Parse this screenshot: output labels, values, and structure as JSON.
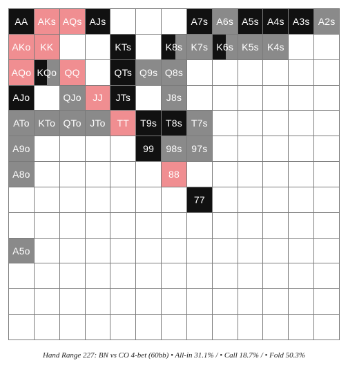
{
  "colors": {
    "allin": "#111111",
    "call": "#8a8a8a",
    "fold": "#f08e91",
    "empty": "#ffffff",
    "grid_line": "#7a7a7a",
    "label": "#ffffff"
  },
  "ranks": [
    "A",
    "K",
    "Q",
    "J",
    "T",
    "9",
    "8",
    "7",
    "6",
    "5",
    "4",
    "3",
    "2"
  ],
  "caption": "Hand Range 227: BN vs CO 4-bet (60bb) • All-in 31.1% / • Call 18.7% / • Fold 50.3%",
  "chart_data": {
    "type": "heatmap",
    "title": "",
    "cells": [
      {
        "label": "AA",
        "r": 0,
        "c": 0,
        "segments": [
          {
            "action": "allin",
            "frac": 1
          }
        ]
      },
      {
        "label": "AKs",
        "r": 0,
        "c": 1,
        "segments": [
          {
            "action": "fold",
            "frac": 1
          }
        ]
      },
      {
        "label": "AQs",
        "r": 0,
        "c": 2,
        "segments": [
          {
            "action": "fold",
            "frac": 1
          }
        ]
      },
      {
        "label": "AJs",
        "r": 0,
        "c": 3,
        "segments": [
          {
            "action": "allin",
            "frac": 1
          }
        ]
      },
      {
        "label": "A7s",
        "r": 0,
        "c": 7,
        "segments": [
          {
            "action": "allin",
            "frac": 1
          }
        ]
      },
      {
        "label": "A6s",
        "r": 0,
        "c": 8,
        "segments": [
          {
            "action": "call",
            "frac": 1
          }
        ]
      },
      {
        "label": "A5s",
        "r": 0,
        "c": 9,
        "segments": [
          {
            "action": "allin",
            "frac": 1
          }
        ]
      },
      {
        "label": "A4s",
        "r": 0,
        "c": 10,
        "segments": [
          {
            "action": "allin",
            "frac": 1
          }
        ]
      },
      {
        "label": "A3s",
        "r": 0,
        "c": 11,
        "segments": [
          {
            "action": "allin",
            "frac": 1
          }
        ]
      },
      {
        "label": "A2s",
        "r": 0,
        "c": 12,
        "segments": [
          {
            "action": "call",
            "frac": 1
          }
        ]
      },
      {
        "label": "AKo",
        "r": 1,
        "c": 0,
        "segments": [
          {
            "action": "fold",
            "frac": 1
          }
        ]
      },
      {
        "label": "KK",
        "r": 1,
        "c": 1,
        "segments": [
          {
            "action": "fold",
            "frac": 1
          }
        ]
      },
      {
        "label": "KTs",
        "r": 1,
        "c": 4,
        "segments": [
          {
            "action": "allin",
            "frac": 1
          }
        ]
      },
      {
        "label": "K8s",
        "r": 1,
        "c": 6,
        "segments": [
          {
            "action": "allin",
            "frac": 0.55
          },
          {
            "action": "call",
            "frac": 0.45
          }
        ]
      },
      {
        "label": "K7s",
        "r": 1,
        "c": 7,
        "segments": [
          {
            "action": "call",
            "frac": 1
          }
        ]
      },
      {
        "label": "K6s",
        "r": 1,
        "c": 8,
        "segments": [
          {
            "action": "allin",
            "frac": 0.55
          },
          {
            "action": "call",
            "frac": 0.45
          }
        ]
      },
      {
        "label": "K5s",
        "r": 1,
        "c": 9,
        "segments": [
          {
            "action": "call",
            "frac": 1
          }
        ]
      },
      {
        "label": "K4s",
        "r": 1,
        "c": 10,
        "segments": [
          {
            "action": "call",
            "frac": 1
          }
        ]
      },
      {
        "label": "AQo",
        "r": 2,
        "c": 0,
        "segments": [
          {
            "action": "fold",
            "frac": 1
          }
        ]
      },
      {
        "label": "KQo",
        "r": 2,
        "c": 1,
        "segments": [
          {
            "action": "allin",
            "frac": 0.5
          },
          {
            "action": "call",
            "frac": 0.5
          }
        ]
      },
      {
        "label": "QQ",
        "r": 2,
        "c": 2,
        "segments": [
          {
            "action": "fold",
            "frac": 1
          }
        ]
      },
      {
        "label": "QTs",
        "r": 2,
        "c": 4,
        "segments": [
          {
            "action": "allin",
            "frac": 1
          }
        ]
      },
      {
        "label": "Q9s",
        "r": 2,
        "c": 5,
        "segments": [
          {
            "action": "call",
            "frac": 1
          }
        ]
      },
      {
        "label": "Q8s",
        "r": 2,
        "c": 6,
        "segments": [
          {
            "action": "call",
            "frac": 1
          }
        ]
      },
      {
        "label": "AJo",
        "r": 3,
        "c": 0,
        "segments": [
          {
            "action": "allin",
            "frac": 1
          }
        ]
      },
      {
        "label": "QJo",
        "r": 3,
        "c": 2,
        "segments": [
          {
            "action": "call",
            "frac": 1
          }
        ]
      },
      {
        "label": "JJ",
        "r": 3,
        "c": 3,
        "segments": [
          {
            "action": "fold",
            "frac": 1
          }
        ]
      },
      {
        "label": "JTs",
        "r": 3,
        "c": 4,
        "segments": [
          {
            "action": "allin",
            "frac": 1
          }
        ]
      },
      {
        "label": "J8s",
        "r": 3,
        "c": 6,
        "segments": [
          {
            "action": "call",
            "frac": 1
          }
        ]
      },
      {
        "label": "ATo",
        "r": 4,
        "c": 0,
        "segments": [
          {
            "action": "call",
            "frac": 1
          }
        ]
      },
      {
        "label": "KTo",
        "r": 4,
        "c": 1,
        "segments": [
          {
            "action": "call",
            "frac": 1
          }
        ]
      },
      {
        "label": "QTo",
        "r": 4,
        "c": 2,
        "segments": [
          {
            "action": "call",
            "frac": 1
          }
        ]
      },
      {
        "label": "JTo",
        "r": 4,
        "c": 3,
        "segments": [
          {
            "action": "call",
            "frac": 1
          }
        ]
      },
      {
        "label": "TT",
        "r": 4,
        "c": 4,
        "segments": [
          {
            "action": "fold",
            "frac": 1
          }
        ]
      },
      {
        "label": "T9s",
        "r": 4,
        "c": 5,
        "segments": [
          {
            "action": "allin",
            "frac": 1
          }
        ]
      },
      {
        "label": "T8s",
        "r": 4,
        "c": 6,
        "segments": [
          {
            "action": "allin",
            "frac": 1
          }
        ]
      },
      {
        "label": "T7s",
        "r": 4,
        "c": 7,
        "segments": [
          {
            "action": "call",
            "frac": 1
          }
        ]
      },
      {
        "label": "A9o",
        "r": 5,
        "c": 0,
        "segments": [
          {
            "action": "call",
            "frac": 1
          }
        ]
      },
      {
        "label": "99",
        "r": 5,
        "c": 5,
        "segments": [
          {
            "action": "allin",
            "frac": 1
          }
        ]
      },
      {
        "label": "98s",
        "r": 5,
        "c": 6,
        "segments": [
          {
            "action": "call",
            "frac": 1
          }
        ]
      },
      {
        "label": "97s",
        "r": 5,
        "c": 7,
        "segments": [
          {
            "action": "call",
            "frac": 1
          }
        ]
      },
      {
        "label": "A8o",
        "r": 6,
        "c": 0,
        "segments": [
          {
            "action": "call",
            "frac": 1
          }
        ]
      },
      {
        "label": "88",
        "r": 6,
        "c": 6,
        "segments": [
          {
            "action": "fold",
            "frac": 1
          }
        ]
      },
      {
        "label": "77",
        "r": 7,
        "c": 7,
        "segments": [
          {
            "action": "allin",
            "frac": 1
          }
        ]
      },
      {
        "label": "A5o",
        "r": 9,
        "c": 0,
        "segments": [
          {
            "action": "call",
            "frac": 1
          }
        ]
      }
    ]
  }
}
